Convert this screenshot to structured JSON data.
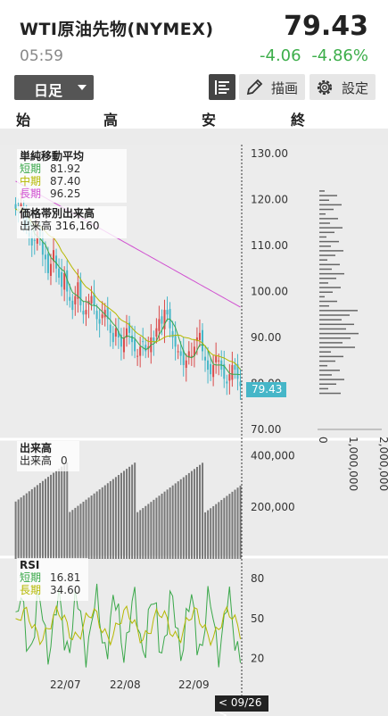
{
  "header": {
    "title": "WTI原油先物(NYMEX)",
    "price": "79.43",
    "time": "05:59",
    "change": "-4.06",
    "change_pct": "-4.86%"
  },
  "toolbar": {
    "period": "日足",
    "draw_label": "描画",
    "settings_label": "設定",
    "icons": [
      "list-view-icon",
      "pencil-icon",
      "gear-icon"
    ]
  },
  "ohlc_labels": {
    "open": "始",
    "high": "高",
    "low": "安",
    "close": "終"
  },
  "ma_legend": {
    "title": "単純移動平均",
    "rows": [
      {
        "label": "短期",
        "value": "81.92",
        "color": "#3aa84a"
      },
      {
        "label": "中期",
        "value": "87.40",
        "color": "#b5b800"
      },
      {
        "label": "長期",
        "value": "96.25",
        "color": "#d050d0"
      }
    ]
  },
  "vp_legend": {
    "title": "価格帯別出来高",
    "label": "出来高",
    "value": "316,160"
  },
  "volume_legend": {
    "title": "出来高",
    "label": "出来高",
    "value": "0"
  },
  "rsi_legend": {
    "title": "RSI",
    "rows": [
      {
        "label": "短期",
        "value": "16.81",
        "color": "#3aa84a"
      },
      {
        "label": "長期",
        "value": "34.60",
        "color": "#b5b800"
      }
    ]
  },
  "last_price_tag": "79.43",
  "date_tag": "< 09/26 >",
  "colors": {
    "up": "#d94a4a",
    "down": "#46b6c8",
    "short_ma": "#3aa84a",
    "mid_ma": "#b5b800",
    "long_ma": "#d050d0",
    "volume": "#777777"
  },
  "chart_data": {
    "type": "candlestick",
    "x_ticks": [
      "22/07",
      "22/08",
      "22/09"
    ],
    "price_axis": {
      "ticks": [
        "130.00",
        "120.00",
        "110.00",
        "100.00",
        "90.00",
        "80.00",
        "70.00"
      ],
      "range": [
        70,
        130
      ]
    },
    "volume_axis": {
      "ticks": [
        "400,000",
        "200,000"
      ]
    },
    "rsi_axis": {
      "ticks": [
        "80",
        "50",
        "20"
      ]
    },
    "volume_profile_axis": {
      "ticks": [
        "0",
        "1,000,000",
        "2,000,000"
      ]
    },
    "approx_closes": [
      118,
      117,
      119,
      116,
      114,
      112,
      110,
      111,
      113,
      112,
      108,
      107,
      104,
      106,
      109,
      105,
      103,
      101,
      104,
      100,
      98,
      96,
      99,
      102,
      97,
      95,
      96,
      98,
      99,
      97,
      94,
      93,
      95,
      96,
      94,
      91,
      89,
      92,
      90,
      88,
      90,
      92,
      91,
      89,
      87,
      86,
      88,
      89,
      87,
      88,
      90,
      89,
      92,
      94,
      93,
      96,
      95,
      92,
      90,
      88,
      87,
      86,
      84,
      85,
      87,
      86,
      88,
      90,
      91,
      87,
      85,
      83,
      82,
      84,
      86,
      85,
      83,
      81,
      80,
      82,
      84,
      83,
      81,
      79.43
    ],
    "sma_short_last": 81.92,
    "sma_mid_last": 87.4,
    "sma_long_last": 96.25,
    "rsi_short_last": 16.81,
    "rsi_long_last": 34.6
  }
}
